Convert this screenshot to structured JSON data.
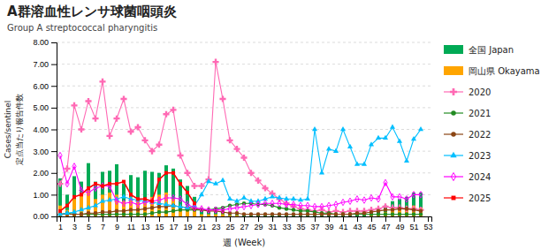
{
  "chart_data": {
    "type": "bar",
    "title": "A群溶血性レンサ球菌咽頭炎",
    "subtitle": "Group A streptococcal pharyngitis",
    "xlabel": "週 (Week)",
    "ylabel": [
      "Cases/sentinel",
      "定点当たり報告件数"
    ],
    "x": [
      1,
      2,
      3,
      4,
      5,
      6,
      7,
      8,
      9,
      10,
      11,
      12,
      13,
      14,
      15,
      16,
      17,
      18,
      19,
      20,
      21,
      22,
      23,
      24,
      25,
      26,
      27,
      28,
      29,
      30,
      31,
      32,
      33,
      34,
      35,
      36,
      37,
      38,
      39,
      40,
      41,
      42,
      43,
      44,
      45,
      46,
      47,
      48,
      49,
      50,
      51,
      52,
      53
    ],
    "xlim": [
      0.5,
      53.5
    ],
    "xticks": [
      1,
      3,
      5,
      7,
      9,
      11,
      13,
      15,
      17,
      19,
      21,
      23,
      25,
      27,
      29,
      31,
      33,
      35,
      37,
      39,
      41,
      43,
      45,
      47,
      49,
      51,
      53
    ],
    "ylim": [
      0.0,
      8.0
    ],
    "yticks": [
      {
        "value": 0.0,
        "label": "0.00"
      },
      {
        "value": 1.0,
        "label": "1.00"
      },
      {
        "value": 2.0,
        "label": "2.00"
      },
      {
        "value": 3.0,
        "label": "3.00"
      },
      {
        "value": 4.0,
        "label": "4.00"
      },
      {
        "value": 5.0,
        "label": "5.00"
      },
      {
        "value": 6.0,
        "label": "6.00"
      },
      {
        "value": 7.0,
        "label": "7.00"
      },
      {
        "value": 8.0,
        "label": "8.00"
      }
    ],
    "grid": true,
    "legend": "right",
    "series": [
      {
        "name": "全国 Japan",
        "type": "bar",
        "color": "#00AA55",
        "values": [
          1.75,
          1.0,
          1.85,
          1.6,
          2.45,
          1.6,
          2.05,
          2.1,
          2.4,
          1.5,
          1.9,
          1.8,
          2.1,
          2.05,
          2.0,
          2.35,
          2.2,
          1.7,
          1.4,
          0.9,
          0.3,
          0.2,
          0.2,
          0.15,
          0.1,
          0.1,
          0.05,
          0.05,
          0.1,
          0.05,
          0.05,
          0.05,
          0.05,
          0.05,
          0.05,
          0.05,
          0.05,
          0.05,
          0.1,
          0.1,
          0.1,
          0.1,
          0.1,
          0.15,
          0.2,
          0.3,
          0.5,
          0.7,
          0.8,
          0.9,
          1.1,
          1.1,
          0.0
        ]
      },
      {
        "name": "岡山県 Okayama",
        "type": "bar",
        "color": "#FFA500",
        "values": [
          0.5,
          0.3,
          0.8,
          1.0,
          1.2,
          0.8,
          1.0,
          1.1,
          1.0,
          0.7,
          0.9,
          0.7,
          0.8,
          0.9,
          1.0,
          1.1,
          0.8,
          0.5,
          0.5,
          0.3,
          0.1,
          0.1,
          0.1,
          0.1,
          0.05,
          0.05,
          0.0,
          0.0,
          0.0,
          0.0,
          0.0,
          0.0,
          0.0,
          0.0,
          0.0,
          0.0,
          0.0,
          0.0,
          0.0,
          0.0,
          0.0,
          0.0,
          0.0,
          0.0,
          0.1,
          0.1,
          0.2,
          0.3,
          0.4,
          0.4,
          0.5,
          0.4,
          0.0
        ]
      },
      {
        "name": "2020",
        "type": "line",
        "color": "#FF69B4",
        "marker": "plus",
        "values": [
          1.5,
          2.2,
          5.1,
          4.0,
          5.3,
          4.5,
          6.2,
          3.7,
          4.5,
          5.4,
          3.9,
          4.1,
          3.5,
          3.0,
          3.3,
          4.7,
          4.9,
          2.8,
          2.0,
          1.4,
          1.4,
          1.7,
          7.1,
          5.4,
          3.5,
          3.1,
          2.7,
          2.0,
          1.65,
          1.3,
          1.05,
          0.8,
          0.6,
          0.45,
          0.35,
          0.3,
          0.25,
          0.3,
          0.2,
          0.25,
          0.2,
          0.25,
          0.25,
          0.25,
          0.3,
          0.35,
          0.45,
          0.4,
          0.4,
          0.35,
          0.35,
          0.3,
          null
        ]
      },
      {
        "name": "2021",
        "type": "line",
        "color": "#228B22",
        "marker": "circle",
        "values": [
          0.1,
          0.15,
          0.1,
          0.1,
          0.1,
          0.1,
          0.1,
          0.1,
          0.1,
          0.1,
          0.1,
          0.1,
          0.1,
          0.15,
          0.2,
          0.2,
          0.25,
          0.3,
          0.3,
          0.3,
          0.3,
          0.3,
          0.35,
          0.4,
          0.5,
          0.55,
          0.6,
          0.6,
          0.55,
          0.55,
          0.5,
          0.4,
          0.35,
          0.3,
          0.25,
          0.25,
          0.2,
          0.15,
          0.15,
          0.1,
          0.1,
          0.1,
          0.1,
          0.1,
          0.1,
          0.1,
          0.1,
          0.1,
          0.1,
          0.1,
          0.1,
          0.1,
          null
        ]
      },
      {
        "name": "2022",
        "type": "line",
        "color": "#8B4513",
        "marker": "circle",
        "values": [
          0.1,
          0.1,
          0.1,
          0.1,
          0.15,
          0.15,
          0.2,
          0.2,
          0.25,
          0.25,
          0.3,
          0.3,
          0.35,
          0.4,
          0.45,
          0.45,
          0.5,
          0.45,
          0.4,
          0.35,
          0.3,
          0.25,
          0.25,
          0.2,
          0.15,
          0.15,
          0.1,
          0.1,
          0.1,
          0.1,
          0.1,
          0.1,
          0.1,
          0.1,
          0.1,
          0.1,
          0.1,
          0.1,
          0.1,
          0.1,
          0.1,
          0.1,
          0.15,
          0.15,
          0.2,
          0.25,
          0.3,
          0.3,
          0.35,
          0.35,
          0.3,
          0.25,
          null
        ]
      },
      {
        "name": "2023",
        "type": "line",
        "color": "#00BFFF",
        "marker": "triangle",
        "values": [
          0.1,
          0.15,
          0.2,
          0.3,
          0.4,
          0.5,
          0.7,
          0.75,
          0.8,
          0.9,
          0.8,
          0.75,
          0.7,
          0.65,
          0.6,
          0.55,
          0.5,
          0.45,
          0.4,
          0.5,
          1.0,
          1.6,
          1.5,
          1.65,
          0.8,
          0.7,
          0.85,
          0.7,
          0.7,
          0.8,
          0.9,
          0.85,
          0.8,
          0.8,
          0.75,
          0.8,
          4.0,
          2.0,
          3.1,
          3.0,
          4.0,
          3.2,
          2.4,
          2.4,
          3.3,
          3.6,
          3.6,
          4.1,
          3.45,
          2.55,
          3.55,
          4.0,
          null
        ]
      },
      {
        "name": "2024",
        "type": "line",
        "color": "#FF00FF",
        "marker": "diamond",
        "values": [
          2.8,
          1.5,
          2.3,
          1.2,
          1.1,
          1.3,
          1.4,
          1.4,
          0.7,
          0.6,
          0.65,
          0.55,
          0.65,
          0.7,
          0.75,
          0.85,
          0.85,
          0.8,
          0.55,
          0.4,
          0.35,
          0.3,
          0.3,
          0.3,
          0.35,
          0.4,
          0.45,
          0.5,
          0.55,
          0.6,
          0.6,
          0.6,
          0.55,
          0.55,
          0.5,
          0.5,
          0.45,
          0.45,
          0.5,
          0.55,
          0.65,
          0.7,
          0.8,
          0.75,
          0.85,
          0.8,
          1.55,
          0.9,
          0.9,
          0.8,
          1.0,
          1.0,
          null
        ]
      },
      {
        "name": "2025",
        "type": "line",
        "color": "#FF0000",
        "marker": "square",
        "values": [
          0.25,
          0.5,
          0.9,
          1.0,
          1.3,
          1.5,
          1.4,
          1.5,
          1.5,
          1.6,
          1.0,
          0.8,
          0.8,
          0.7,
          1.7,
          2.0,
          2.0,
          1.5,
          1.1,
          0.6,
          null,
          null,
          null,
          null,
          null,
          null,
          null,
          null,
          null,
          null,
          null,
          null,
          null,
          null,
          null,
          null,
          null,
          null,
          null,
          null,
          null,
          null,
          null,
          null,
          null,
          null,
          null,
          null,
          null,
          null,
          null,
          null,
          null
        ]
      }
    ]
  }
}
